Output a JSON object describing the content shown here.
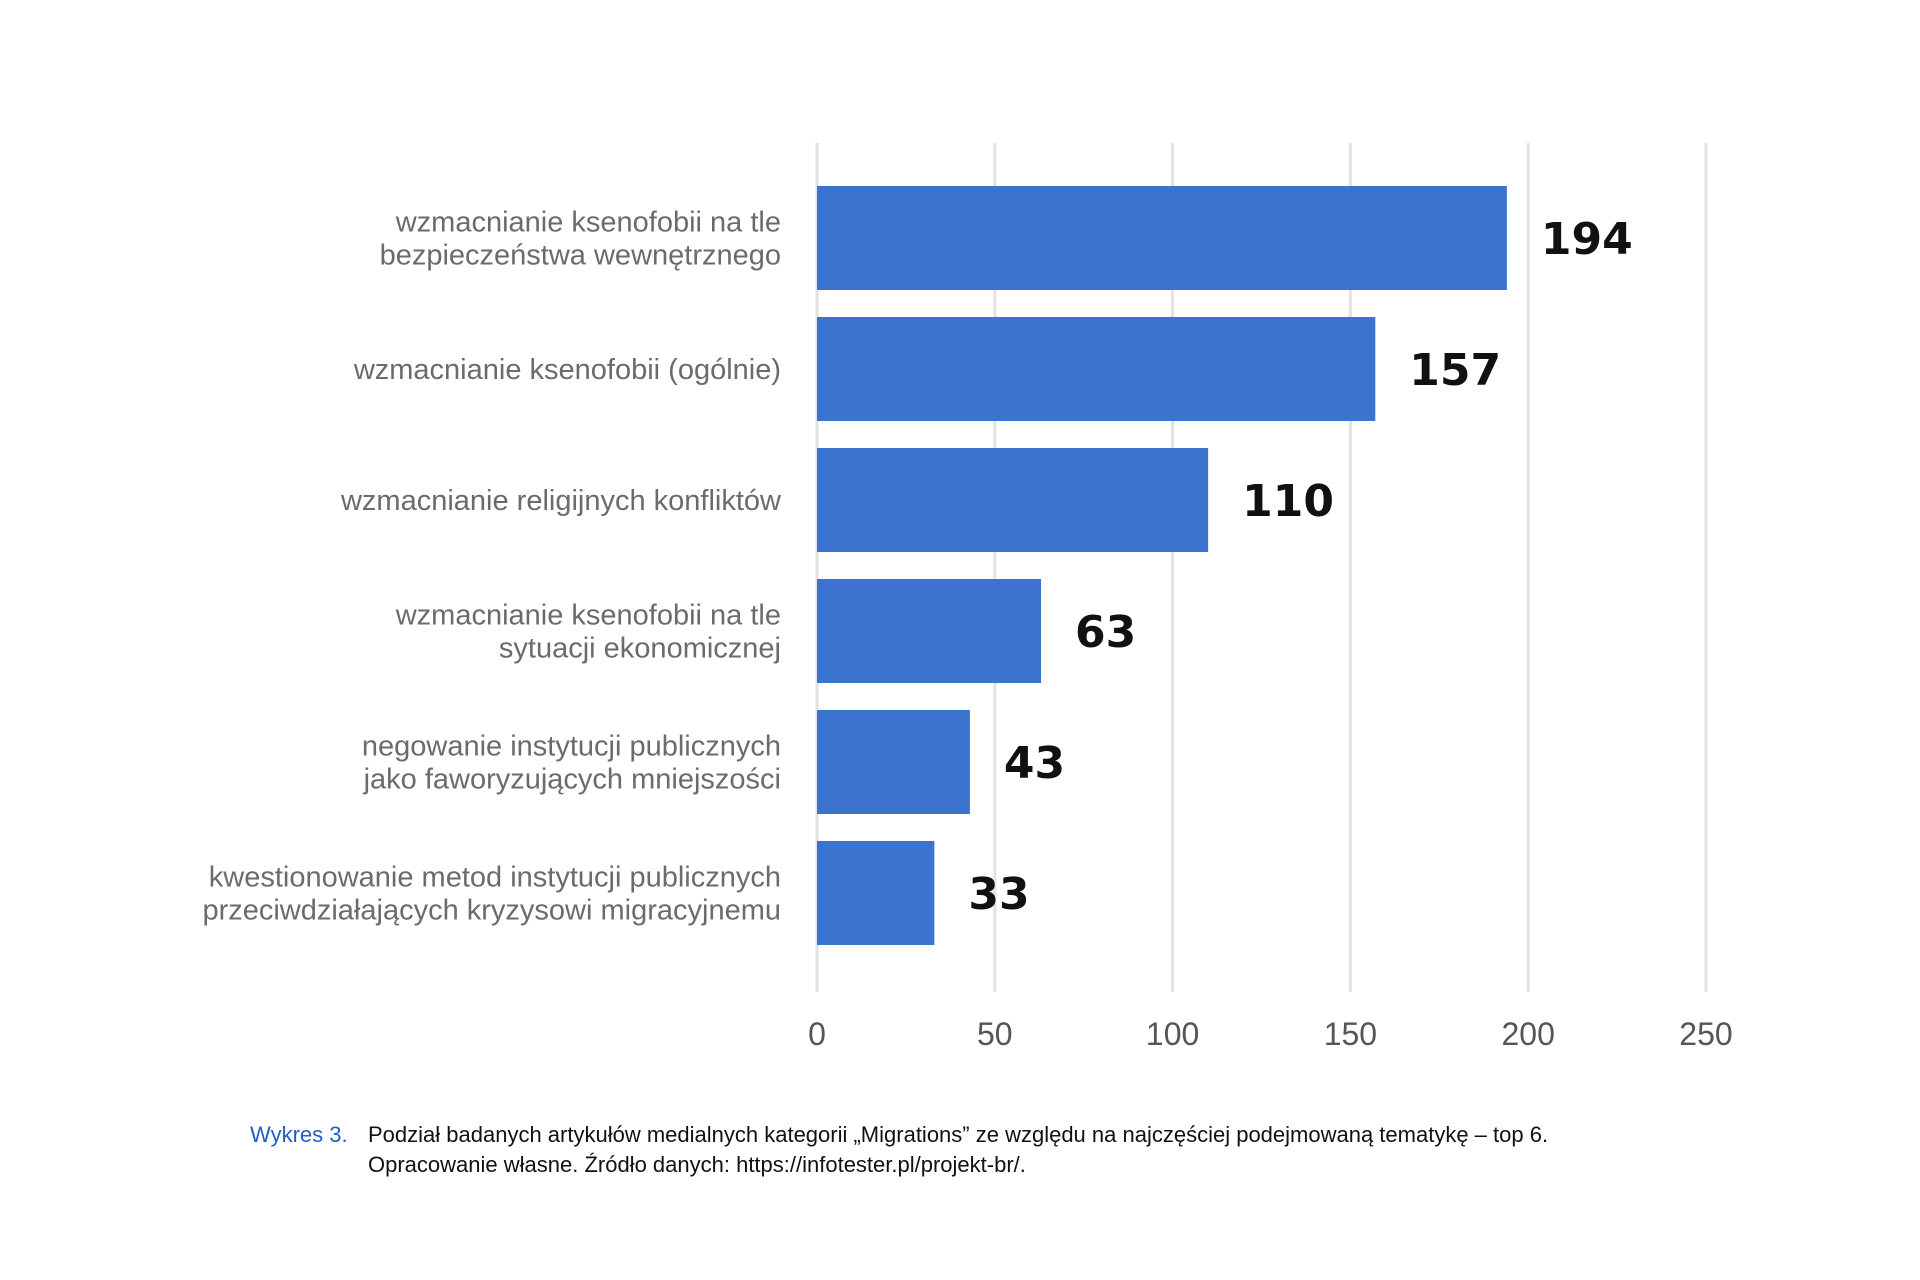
{
  "chart_data": {
    "type": "bar",
    "orientation": "horizontal",
    "categories": [
      [
        "wzmacnianie ksenofobii na tle",
        "bezpieczeństwa wewnętrznego"
      ],
      [
        "wzmacnianie ksenofobii (ogólnie)"
      ],
      [
        "wzmacnianie religijnych konfliktów"
      ],
      [
        "wzmacnianie ksenofobii na tle",
        "sytuacji ekonomicznej"
      ],
      [
        "negowanie instytucji publicznych",
        "jako faworyzujących mniejszości"
      ],
      [
        "kwestionowanie metod instytucji publicznych",
        "przeciwdziałających kryzysowi migracyjnemu"
      ]
    ],
    "values": [
      194,
      157,
      110,
      63,
      43,
      33
    ],
    "xlim": [
      0,
      250
    ],
    "ticks": [
      0,
      50,
      100,
      150,
      200,
      250
    ],
    "grid": true,
    "colors": {
      "bar": "#3b73cf",
      "grid": "#e2e2e2"
    }
  },
  "caption": {
    "prefix": "Wykres 3.",
    "line1": "Podział badanych artykułów medialnych kategorii „Migrations” ze względu na najczęściej podejmowaną tematykę – top 6.",
    "line2": "Opracowanie własne. Źródło danych: https://infotester.pl/projekt-br/."
  }
}
